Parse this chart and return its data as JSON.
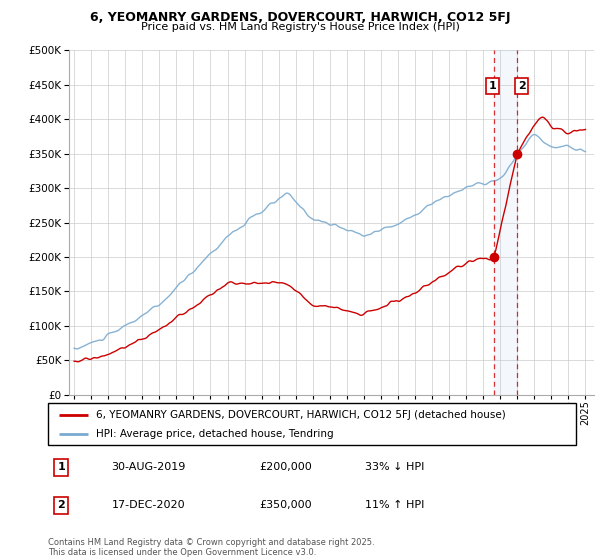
{
  "title1": "6, YEOMANRY GARDENS, DOVERCOURT, HARWICH, CO12 5FJ",
  "title2": "Price paid vs. HM Land Registry's House Price Index (HPI)",
  "legend1": "6, YEOMANRY GARDENS, DOVERCOURT, HARWICH, CO12 5FJ (detached house)",
  "legend2": "HPI: Average price, detached house, Tendring",
  "annotation1_label": "1",
  "annotation1_date": "30-AUG-2019",
  "annotation1_price": "£200,000",
  "annotation1_hpi": "33% ↓ HPI",
  "annotation2_label": "2",
  "annotation2_date": "17-DEC-2020",
  "annotation2_price": "£350,000",
  "annotation2_hpi": "11% ↑ HPI",
  "footer": "Contains HM Land Registry data © Crown copyright and database right 2025.\nThis data is licensed under the Open Government Licence v3.0.",
  "red_color": "#cc0000",
  "blue_color": "#7aaacf",
  "ylim": [
    0,
    500000
  ],
  "yticks": [
    0,
    50000,
    100000,
    150000,
    200000,
    250000,
    300000,
    350000,
    400000,
    450000,
    500000
  ],
  "sale1_year": 2019.66,
  "sale1_price": 200000,
  "sale2_year": 2020.96,
  "sale2_price": 350000,
  "xstart": 1995,
  "xend": 2025
}
